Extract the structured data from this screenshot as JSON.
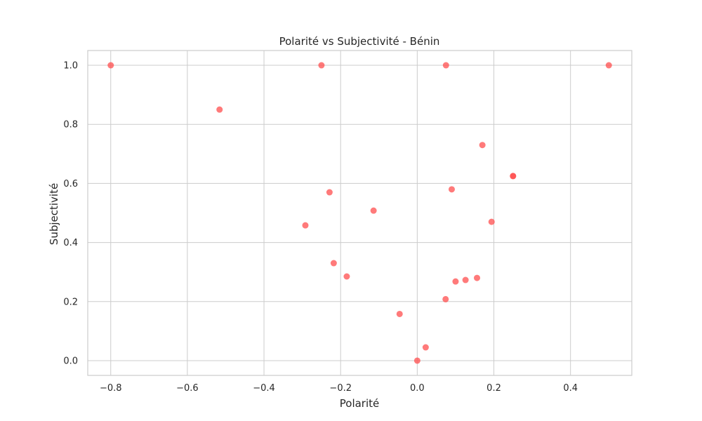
{
  "chart_data": {
    "type": "scatter",
    "title": "Polarité vs Subjectivité - Bénin",
    "xlabel": "Polarité",
    "ylabel": "Subjectivité",
    "xlim": [
      -0.86,
      0.56
    ],
    "ylim": [
      -0.05,
      1.05
    ],
    "xticks": [
      -0.8,
      -0.6,
      -0.4,
      -0.2,
      0.0,
      0.2,
      0.4
    ],
    "xtick_labels": [
      "−0.8",
      "−0.6",
      "−0.4",
      "−0.2",
      "0.0",
      "0.2",
      "0.4"
    ],
    "yticks": [
      0.0,
      0.2,
      0.4,
      0.6,
      0.8,
      1.0
    ],
    "ytick_labels": [
      "0.0",
      "0.2",
      "0.4",
      "0.6",
      "0.8",
      "1.0"
    ],
    "grid": true,
    "point_color": "#ff4d4d",
    "points": [
      {
        "x": -0.8,
        "y": 1.0
      },
      {
        "x": -0.25,
        "y": 1.0
      },
      {
        "x": 0.075,
        "y": 1.0
      },
      {
        "x": 0.5,
        "y": 1.0
      },
      {
        "x": -0.516,
        "y": 0.85
      },
      {
        "x": 0.17,
        "y": 0.73
      },
      {
        "x": 0.25,
        "y": 0.625
      },
      {
        "x": 0.25,
        "y": 0.625
      },
      {
        "x": 0.09,
        "y": 0.58
      },
      {
        "x": -0.229,
        "y": 0.57
      },
      {
        "x": -0.114,
        "y": 0.508
      },
      {
        "x": 0.194,
        "y": 0.47
      },
      {
        "x": -0.292,
        "y": 0.458
      },
      {
        "x": -0.218,
        "y": 0.33
      },
      {
        "x": -0.184,
        "y": 0.285
      },
      {
        "x": 0.156,
        "y": 0.28
      },
      {
        "x": 0.126,
        "y": 0.273
      },
      {
        "x": 0.1,
        "y": 0.268
      },
      {
        "x": 0.074,
        "y": 0.208
      },
      {
        "x": -0.046,
        "y": 0.158
      },
      {
        "x": 0.022,
        "y": 0.045
      },
      {
        "x": 0.0,
        "y": 0.0
      }
    ]
  }
}
